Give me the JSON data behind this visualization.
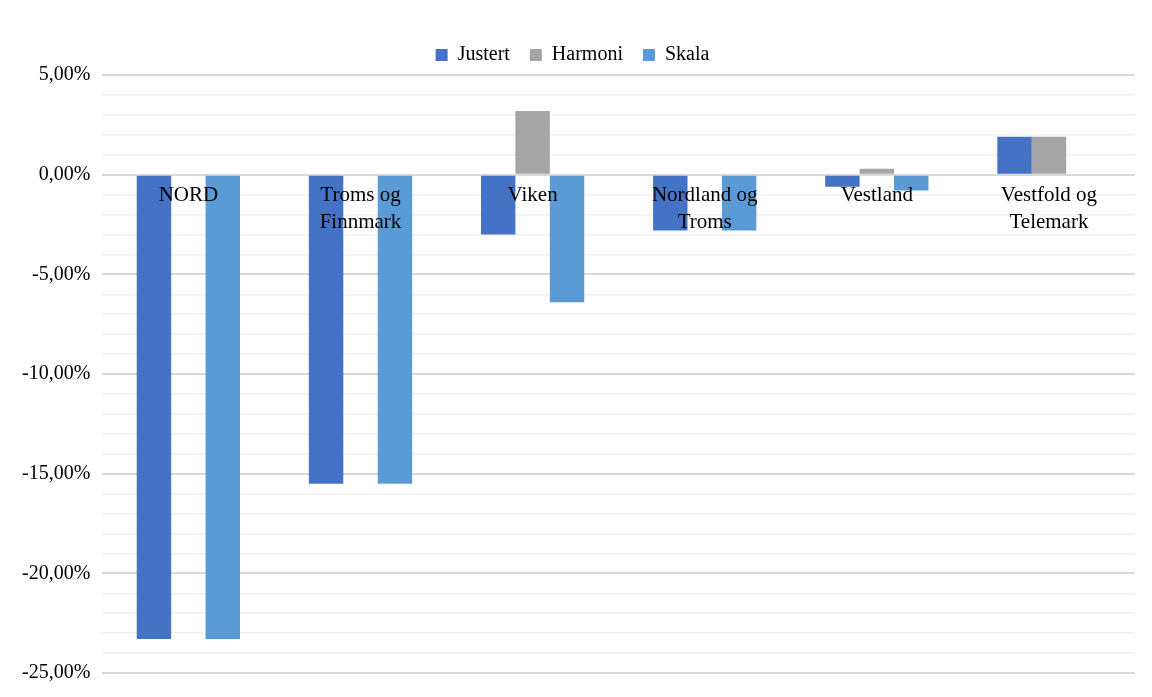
{
  "chart_data": {
    "type": "bar",
    "categories": [
      "NORD",
      "Troms og Finnmark",
      "Viken",
      "Nordland og Troms",
      "Vestland",
      "Vestfold og Telemark"
    ],
    "series": [
      {
        "name": "Justert",
        "color": "#4472c4",
        "values": [
          -23.3,
          -15.5,
          -3.0,
          -2.8,
          -0.6,
          1.9
        ]
      },
      {
        "name": "Harmoni",
        "color": "#a5a5a5",
        "values": [
          0,
          0,
          3.2,
          0,
          0.3,
          1.9
        ]
      },
      {
        "name": "Skala",
        "color": "#5b9bd5",
        "values": [
          -23.3,
          -15.5,
          -6.4,
          -2.8,
          -0.8,
          0
        ]
      }
    ],
    "ylim": [
      -25,
      5
    ],
    "yticks": [
      {
        "value": -25,
        "label": "-25,00%"
      },
      {
        "value": -24,
        "label": null
      },
      {
        "value": -23,
        "label": null
      },
      {
        "value": -22,
        "label": null
      },
      {
        "value": -21,
        "label": null
      },
      {
        "value": -20,
        "label": "-20,00%"
      },
      {
        "value": -19,
        "label": null
      },
      {
        "value": -18,
        "label": null
      },
      {
        "value": -17,
        "label": null
      },
      {
        "value": -16,
        "label": null
      },
      {
        "value": -15,
        "label": "-15,00%"
      },
      {
        "value": -14,
        "label": null
      },
      {
        "value": -13,
        "label": null
      },
      {
        "value": -12,
        "label": null
      },
      {
        "value": -11,
        "label": null
      },
      {
        "value": -10,
        "label": "-10,00%"
      },
      {
        "value": -9,
        "label": null
      },
      {
        "value": -8,
        "label": null
      },
      {
        "value": -7,
        "label": null
      },
      {
        "value": -6,
        "label": null
      },
      {
        "value": -5,
        "label": "-5,00%"
      },
      {
        "value": -4,
        "label": null
      },
      {
        "value": -3,
        "label": null
      },
      {
        "value": -2,
        "label": null
      },
      {
        "value": -1,
        "label": null
      },
      {
        "value": 0,
        "label": "0,00%"
      },
      {
        "value": 1,
        "label": null
      },
      {
        "value": 2,
        "label": null
      },
      {
        "value": 3,
        "label": null
      },
      {
        "value": 4,
        "label": null
      },
      {
        "value": 5,
        "label": "5,00%"
      }
    ],
    "grid": "y",
    "legend": "top"
  }
}
